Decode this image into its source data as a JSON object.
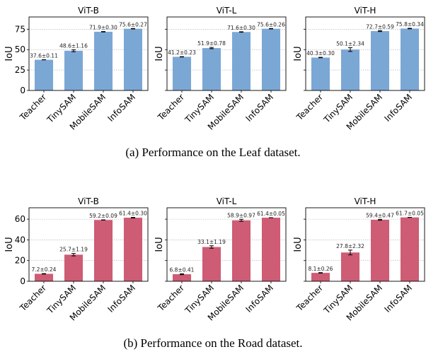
{
  "chart_data": [
    {
      "type": "bar",
      "group": "leaf",
      "caption": "(a)  Performance on the Leaf dataset.",
      "ylabel": "IoU",
      "ylim": [
        0,
        90
      ],
      "yticks": [
        0,
        25,
        50,
        75
      ],
      "grid": "horizontal dotted",
      "color": "#7BA7D5",
      "categories": [
        "Teacher",
        "TinySAM",
        "MobileSAM",
        "InfoSAM"
      ],
      "panels": [
        {
          "title": "ViT-B",
          "values": [
            37.6,
            48.6,
            71.9,
            75.6
          ],
          "errors": [
            0.11,
            1.16,
            0.3,
            0.27
          ],
          "labels": [
            "37.6±0.11",
            "48.6±1.16",
            "71.9±0.30",
            "75.6±0.27"
          ]
        },
        {
          "title": "ViT-L",
          "values": [
            41.2,
            51.9,
            71.6,
            75.6
          ],
          "errors": [
            0.23,
            0.78,
            0.3,
            0.26
          ],
          "labels": [
            "41.2±0.23",
            "51.9±0.78",
            "71.6±0.30",
            "75.6±0.26"
          ]
        },
        {
          "title": "ViT-H",
          "values": [
            40.3,
            50.1,
            72.7,
            75.8
          ],
          "errors": [
            0.3,
            2.34,
            0.59,
            0.34
          ],
          "labels": [
            "40.3±0.30",
            "50.1±2.34",
            "72.7±0.59",
            "75.8±0.34"
          ]
        }
      ]
    },
    {
      "type": "bar",
      "group": "road",
      "caption": "(b)  Performance on the Road dataset.",
      "ylabel": "IoU",
      "ylim": [
        0,
        71
      ],
      "yticks": [
        0,
        20,
        40,
        60
      ],
      "grid": "horizontal dotted",
      "color": "#CD5C74",
      "categories": [
        "Teacher",
        "TinySAM",
        "MobileSAM",
        "InfoSAM"
      ],
      "panels": [
        {
          "title": "ViT-B",
          "values": [
            7.2,
            25.7,
            59.2,
            61.4
          ],
          "errors": [
            0.24,
            1.19,
            0.09,
            0.3
          ],
          "labels": [
            "7.2±0.24",
            "25.7±1.19",
            "59.2±0.09",
            "61.4±0.30"
          ]
        },
        {
          "title": "ViT-L",
          "values": [
            6.8,
            33.1,
            58.9,
            61.4
          ],
          "errors": [
            0.41,
            1.19,
            0.97,
            0.05
          ],
          "labels": [
            "6.8±0.41",
            "33.1±1.19",
            "58.9±0.97",
            "61.4±0.05"
          ]
        },
        {
          "title": "ViT-H",
          "values": [
            8.1,
            27.8,
            59.4,
            61.7
          ],
          "errors": [
            0.26,
            2.32,
            0.47,
            0.05
          ],
          "labels": [
            "8.1±0.26",
            "27.8±2.32",
            "59.4±0.47",
            "61.7±0.05"
          ]
        }
      ]
    }
  ]
}
